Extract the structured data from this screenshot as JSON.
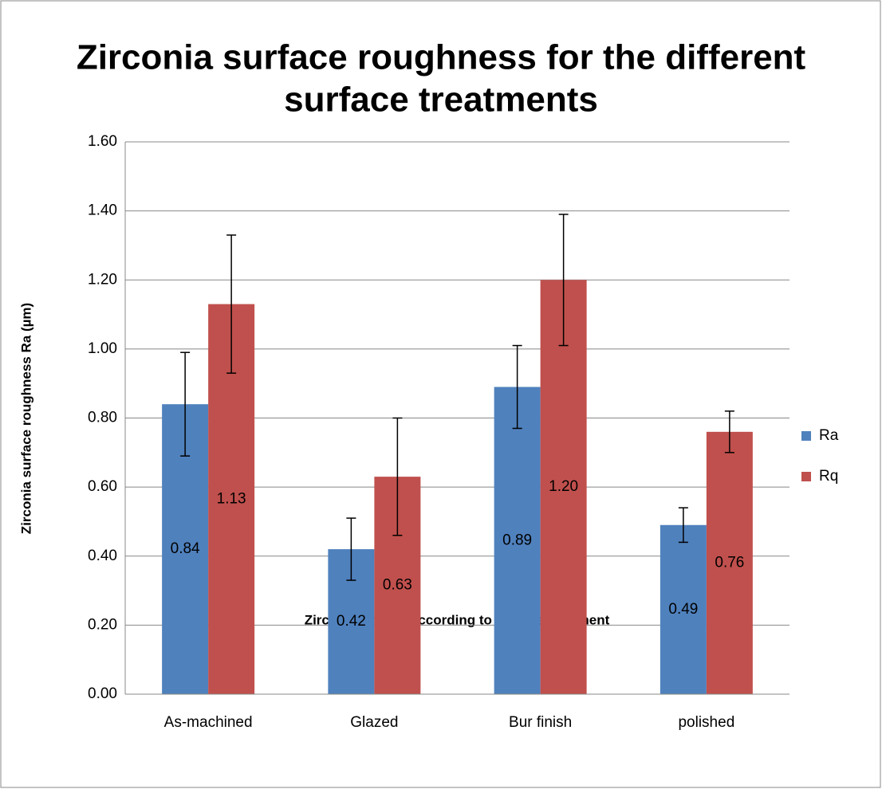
{
  "chart_data": {
    "type": "bar",
    "title": [
      "Zirconia surface roughness for the different",
      "surface treatments"
    ],
    "x_label": "Zirconia groups according to surface treatment",
    "y_label": "Zirconia surface roughness Ra (µm)",
    "categories": [
      "As-machined",
      "Glazed",
      "Bur finish",
      "polished"
    ],
    "series": [
      {
        "name": "Ra",
        "color": "#4f81bd",
        "values": [
          0.84,
          0.42,
          0.89,
          0.49
        ],
        "errors": [
          0.15,
          0.09,
          0.12,
          0.05
        ]
      },
      {
        "name": "Rq",
        "color": "#c0504d",
        "values": [
          1.13,
          0.63,
          1.2,
          0.76
        ],
        "value_labels": [
          "1.13",
          "0.63",
          "1.20",
          "0.76"
        ],
        "errors": [
          0.2,
          0.17,
          0.19,
          0.06
        ]
      }
    ],
    "ylim": [
      0,
      1.6
    ],
    "yticks": [
      {
        "value": 0,
        "label": "0.00"
      },
      {
        "value": 0.2,
        "label": "0.20"
      },
      {
        "value": 0.4,
        "label": "0.40"
      },
      {
        "value": 0.6,
        "label": "0.60"
      },
      {
        "value": 0.8,
        "label": "0.80"
      },
      {
        "value": 1,
        "label": "1.00"
      },
      {
        "value": 1.2,
        "label": "1.20"
      },
      {
        "value": 1.4,
        "label": "1.40"
      },
      {
        "value": 1.6,
        "label": "1.60"
      }
    ],
    "grid": true,
    "legend": "right"
  }
}
